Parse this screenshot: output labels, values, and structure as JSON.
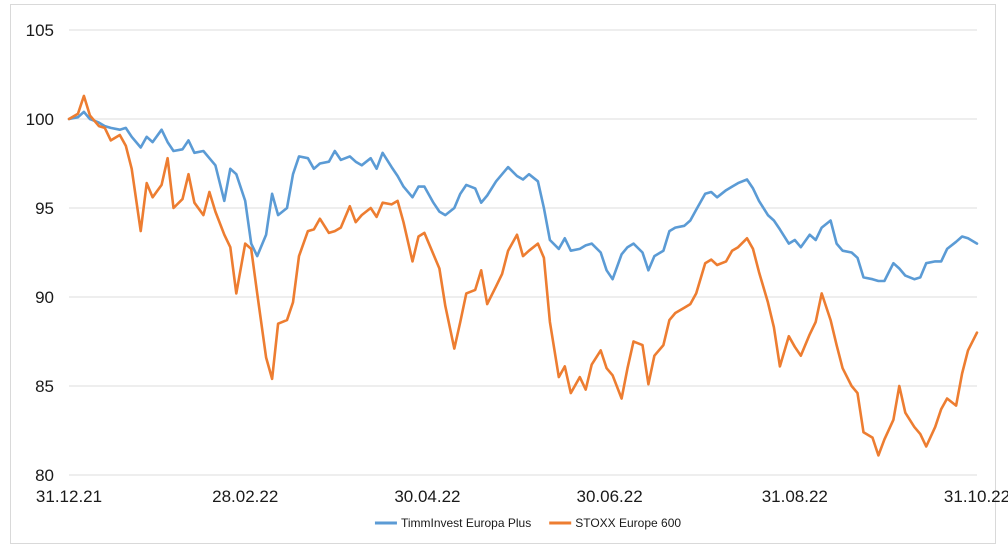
{
  "chart_data": {
    "type": "line",
    "title": "",
    "xlabel": "",
    "ylabel": "",
    "ylim": [
      80,
      105
    ],
    "yticks": [
      80,
      85,
      90,
      95,
      100,
      105
    ],
    "x_tick_labels": [
      "31.12.21",
      "28.02.22",
      "30.04.22",
      "30.06.22",
      "31.08.22",
      "31.10.22"
    ],
    "x_range": [
      "31.12.21",
      "31.10.22"
    ],
    "grid": "horizontal",
    "legend_position": "bottom",
    "series": [
      {
        "name": "TimmInvest Europa Plus",
        "color": "#5b9bd5",
        "points": [
          [
            "31.12.21",
            100.0
          ],
          [
            "03.01.22",
            100.1
          ],
          [
            "05.01.22",
            100.4
          ],
          [
            "07.01.22",
            100.0
          ],
          [
            "10.01.22",
            99.8
          ],
          [
            "12.01.22",
            99.6
          ],
          [
            "14.01.22",
            99.5
          ],
          [
            "17.01.22",
            99.4
          ],
          [
            "19.01.22",
            99.5
          ],
          [
            "21.01.22",
            99.0
          ],
          [
            "24.01.22",
            98.4
          ],
          [
            "26.01.22",
            99.0
          ],
          [
            "28.01.22",
            98.7
          ],
          [
            "31.01.22",
            99.4
          ],
          [
            "02.02.22",
            98.7
          ],
          [
            "04.02.22",
            98.2
          ],
          [
            "07.02.22",
            98.3
          ],
          [
            "09.02.22",
            98.8
          ],
          [
            "11.02.22",
            98.1
          ],
          [
            "14.02.22",
            98.2
          ],
          [
            "16.02.22",
            97.8
          ],
          [
            "18.02.22",
            97.4
          ],
          [
            "21.02.22",
            95.4
          ],
          [
            "23.02.22",
            97.2
          ],
          [
            "25.02.22",
            96.9
          ],
          [
            "28.02.22",
            95.4
          ],
          [
            "02.03.22",
            93.0
          ],
          [
            "04.03.22",
            92.3
          ],
          [
            "07.03.22",
            93.5
          ],
          [
            "09.03.22",
            95.8
          ],
          [
            "11.03.22",
            94.6
          ],
          [
            "14.03.22",
            95.0
          ],
          [
            "16.03.22",
            96.9
          ],
          [
            "18.03.22",
            97.9
          ],
          [
            "21.03.22",
            97.8
          ],
          [
            "23.03.22",
            97.2
          ],
          [
            "25.03.22",
            97.5
          ],
          [
            "28.03.22",
            97.6
          ],
          [
            "30.03.22",
            98.2
          ],
          [
            "01.04.22",
            97.7
          ],
          [
            "04.04.22",
            97.9
          ],
          [
            "06.04.22",
            97.6
          ],
          [
            "08.04.22",
            97.4
          ],
          [
            "11.04.22",
            97.8
          ],
          [
            "13.04.22",
            97.2
          ],
          [
            "15.04.22",
            98.1
          ],
          [
            "18.04.22",
            97.3
          ],
          [
            "20.04.22",
            96.8
          ],
          [
            "22.04.22",
            96.2
          ],
          [
            "25.04.22",
            95.6
          ],
          [
            "27.04.22",
            96.2
          ],
          [
            "29.04.22",
            96.2
          ],
          [
            "02.05.22",
            95.3
          ],
          [
            "04.05.22",
            94.8
          ],
          [
            "06.05.22",
            94.6
          ],
          [
            "09.05.22",
            95.0
          ],
          [
            "11.05.22",
            95.8
          ],
          [
            "13.05.22",
            96.3
          ],
          [
            "16.05.22",
            96.1
          ],
          [
            "18.05.22",
            95.3
          ],
          [
            "20.05.22",
            95.7
          ],
          [
            "23.05.22",
            96.5
          ],
          [
            "25.05.22",
            96.9
          ],
          [
            "27.05.22",
            97.3
          ],
          [
            "30.05.22",
            96.8
          ],
          [
            "01.06.22",
            96.6
          ],
          [
            "03.06.22",
            96.9
          ],
          [
            "06.06.22",
            96.5
          ],
          [
            "08.06.22",
            95.0
          ],
          [
            "10.06.22",
            93.2
          ],
          [
            "13.06.22",
            92.7
          ],
          [
            "15.06.22",
            93.3
          ],
          [
            "17.06.22",
            92.6
          ],
          [
            "20.06.22",
            92.7
          ],
          [
            "22.06.22",
            92.9
          ],
          [
            "24.06.22",
            93.0
          ],
          [
            "27.06.22",
            92.5
          ],
          [
            "29.06.22",
            91.5
          ],
          [
            "01.07.22",
            91.0
          ],
          [
            "04.07.22",
            92.4
          ],
          [
            "06.07.22",
            92.8
          ],
          [
            "08.07.22",
            93.0
          ],
          [
            "11.07.22",
            92.5
          ],
          [
            "13.07.22",
            91.5
          ],
          [
            "15.07.22",
            92.3
          ],
          [
            "18.07.22",
            92.6
          ],
          [
            "20.07.22",
            93.7
          ],
          [
            "22.07.22",
            93.9
          ],
          [
            "25.07.22",
            94.0
          ],
          [
            "27.07.22",
            94.3
          ],
          [
            "29.07.22",
            94.9
          ],
          [
            "01.08.22",
            95.8
          ],
          [
            "03.08.22",
            95.9
          ],
          [
            "05.08.22",
            95.6
          ],
          [
            "08.08.22",
            96.0
          ],
          [
            "10.08.22",
            96.2
          ],
          [
            "12.08.22",
            96.4
          ],
          [
            "15.08.22",
            96.6
          ],
          [
            "17.08.22",
            96.1
          ],
          [
            "19.08.22",
            95.4
          ],
          [
            "22.08.22",
            94.6
          ],
          [
            "24.08.22",
            94.3
          ],
          [
            "26.08.22",
            93.8
          ],
          [
            "29.08.22",
            93.0
          ],
          [
            "31.08.22",
            93.2
          ],
          [
            "02.09.22",
            92.8
          ],
          [
            "05.09.22",
            93.5
          ],
          [
            "07.09.22",
            93.2
          ],
          [
            "09.09.22",
            93.9
          ],
          [
            "12.09.22",
            94.3
          ],
          [
            "14.09.22",
            93.0
          ],
          [
            "16.09.22",
            92.6
          ],
          [
            "19.09.22",
            92.5
          ],
          [
            "21.09.22",
            92.2
          ],
          [
            "23.09.22",
            91.1
          ],
          [
            "26.09.22",
            91.0
          ],
          [
            "28.09.22",
            90.9
          ],
          [
            "30.09.22",
            90.9
          ],
          [
            "03.10.22",
            91.9
          ],
          [
            "05.10.22",
            91.6
          ],
          [
            "07.10.22",
            91.2
          ],
          [
            "10.10.22",
            91.0
          ],
          [
            "12.10.22",
            91.1
          ],
          [
            "14.10.22",
            91.9
          ],
          [
            "17.10.22",
            92.0
          ],
          [
            "19.10.22",
            92.0
          ],
          [
            "21.10.22",
            92.7
          ],
          [
            "24.10.22",
            93.1
          ],
          [
            "26.10.22",
            93.4
          ],
          [
            "28.10.22",
            93.3
          ],
          [
            "31.10.22",
            93.0
          ]
        ]
      },
      {
        "name": "STOXX Europe 600",
        "color": "#ed7d31",
        "points": [
          [
            "31.12.21",
            100.0
          ],
          [
            "03.01.22",
            100.3
          ],
          [
            "05.01.22",
            101.3
          ],
          [
            "07.01.22",
            100.2
          ],
          [
            "10.01.22",
            99.6
          ],
          [
            "12.01.22",
            99.5
          ],
          [
            "14.01.22",
            98.8
          ],
          [
            "17.01.22",
            99.1
          ],
          [
            "19.01.22",
            98.5
          ],
          [
            "21.01.22",
            97.2
          ],
          [
            "24.01.22",
            93.7
          ],
          [
            "26.01.22",
            96.4
          ],
          [
            "28.01.22",
            95.6
          ],
          [
            "31.01.22",
            96.3
          ],
          [
            "02.02.22",
            97.8
          ],
          [
            "04.02.22",
            95.0
          ],
          [
            "07.02.22",
            95.5
          ],
          [
            "09.02.22",
            96.9
          ],
          [
            "11.02.22",
            95.3
          ],
          [
            "14.02.22",
            94.6
          ],
          [
            "16.02.22",
            95.9
          ],
          [
            "18.02.22",
            94.8
          ],
          [
            "21.02.22",
            93.5
          ],
          [
            "23.02.22",
            92.8
          ],
          [
            "25.02.22",
            90.2
          ],
          [
            "28.02.22",
            93.0
          ],
          [
            "02.03.22",
            92.7
          ],
          [
            "04.03.22",
            90.2
          ],
          [
            "07.03.22",
            86.6
          ],
          [
            "09.03.22",
            85.4
          ],
          [
            "11.03.22",
            88.5
          ],
          [
            "14.03.22",
            88.7
          ],
          [
            "16.03.22",
            89.7
          ],
          [
            "18.03.22",
            92.3
          ],
          [
            "21.03.22",
            93.7
          ],
          [
            "23.03.22",
            93.8
          ],
          [
            "25.03.22",
            94.4
          ],
          [
            "28.03.22",
            93.6
          ],
          [
            "30.03.22",
            93.7
          ],
          [
            "01.04.22",
            93.9
          ],
          [
            "04.04.22",
            95.1
          ],
          [
            "06.04.22",
            94.2
          ],
          [
            "08.04.22",
            94.6
          ],
          [
            "11.04.22",
            95.0
          ],
          [
            "13.04.22",
            94.5
          ],
          [
            "15.04.22",
            95.3
          ],
          [
            "18.04.22",
            95.2
          ],
          [
            "20.04.22",
            95.4
          ],
          [
            "22.04.22",
            94.2
          ],
          [
            "25.04.22",
            92.0
          ],
          [
            "27.04.22",
            93.4
          ],
          [
            "29.04.22",
            93.6
          ],
          [
            "02.05.22",
            92.4
          ],
          [
            "04.05.22",
            91.6
          ],
          [
            "06.05.22",
            89.5
          ],
          [
            "09.05.22",
            87.1
          ],
          [
            "11.05.22",
            88.6
          ],
          [
            "13.05.22",
            90.2
          ],
          [
            "16.05.22",
            90.4
          ],
          [
            "18.05.22",
            91.5
          ],
          [
            "20.05.22",
            89.6
          ],
          [
            "23.05.22",
            90.6
          ],
          [
            "25.05.22",
            91.3
          ],
          [
            "27.05.22",
            92.6
          ],
          [
            "30.05.22",
            93.5
          ],
          [
            "01.06.22",
            92.3
          ],
          [
            "03.06.22",
            92.6
          ],
          [
            "06.06.22",
            93.0
          ],
          [
            "08.06.22",
            92.2
          ],
          [
            "10.06.22",
            88.6
          ],
          [
            "13.06.22",
            85.5
          ],
          [
            "15.06.22",
            86.1
          ],
          [
            "17.06.22",
            84.6
          ],
          [
            "20.06.22",
            85.5
          ],
          [
            "22.06.22",
            84.8
          ],
          [
            "24.06.22",
            86.2
          ],
          [
            "27.06.22",
            87.0
          ],
          [
            "29.06.22",
            86.0
          ],
          [
            "01.07.22",
            85.6
          ],
          [
            "04.07.22",
            84.3
          ],
          [
            "06.07.22",
            86.0
          ],
          [
            "08.07.22",
            87.5
          ],
          [
            "11.07.22",
            87.3
          ],
          [
            "13.07.22",
            85.1
          ],
          [
            "15.07.22",
            86.7
          ],
          [
            "18.07.22",
            87.3
          ],
          [
            "20.07.22",
            88.7
          ],
          [
            "22.07.22",
            89.1
          ],
          [
            "25.07.22",
            89.4
          ],
          [
            "27.07.22",
            89.6
          ],
          [
            "29.07.22",
            90.2
          ],
          [
            "01.08.22",
            91.9
          ],
          [
            "03.08.22",
            92.1
          ],
          [
            "05.08.22",
            91.8
          ],
          [
            "08.08.22",
            92.0
          ],
          [
            "10.08.22",
            92.6
          ],
          [
            "12.08.22",
            92.8
          ],
          [
            "15.08.22",
            93.3
          ],
          [
            "17.08.22",
            92.7
          ],
          [
            "19.08.22",
            91.4
          ],
          [
            "22.08.22",
            89.7
          ],
          [
            "24.08.22",
            88.3
          ],
          [
            "26.08.22",
            86.1
          ],
          [
            "29.08.22",
            87.8
          ],
          [
            "31.08.22",
            87.2
          ],
          [
            "02.09.22",
            86.7
          ],
          [
            "05.09.22",
            87.9
          ],
          [
            "07.09.22",
            88.6
          ],
          [
            "09.09.22",
            90.2
          ],
          [
            "12.09.22",
            88.7
          ],
          [
            "14.09.22",
            87.3
          ],
          [
            "16.09.22",
            86.0
          ],
          [
            "19.09.22",
            85.0
          ],
          [
            "21.09.22",
            84.6
          ],
          [
            "23.09.22",
            82.4
          ],
          [
            "26.09.22",
            82.1
          ],
          [
            "28.09.22",
            81.1
          ],
          [
            "30.09.22",
            82.0
          ],
          [
            "03.10.22",
            83.1
          ],
          [
            "05.10.22",
            85.0
          ],
          [
            "07.10.22",
            83.5
          ],
          [
            "10.10.22",
            82.7
          ],
          [
            "12.10.22",
            82.3
          ],
          [
            "14.10.22",
            81.6
          ],
          [
            "17.10.22",
            82.7
          ],
          [
            "19.10.22",
            83.7
          ],
          [
            "21.10.22",
            84.3
          ],
          [
            "24.10.22",
            83.9
          ],
          [
            "26.10.22",
            85.7
          ],
          [
            "28.10.22",
            87.0
          ],
          [
            "31.10.22",
            88.0
          ]
        ]
      }
    ]
  }
}
